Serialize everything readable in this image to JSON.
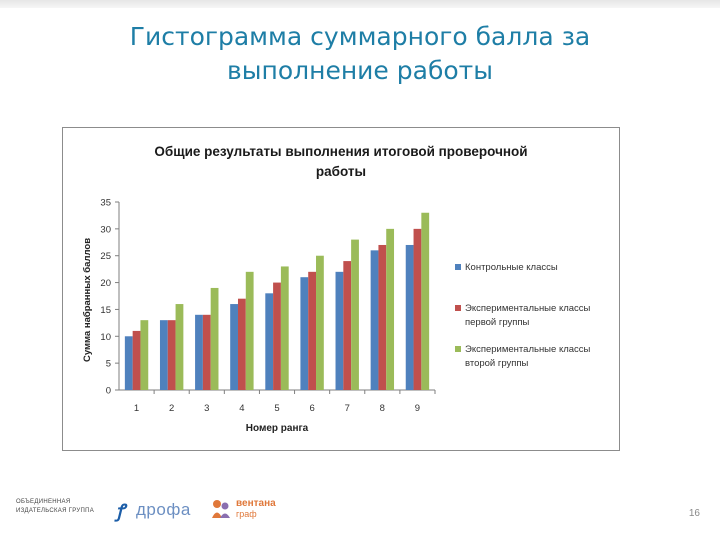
{
  "slide": {
    "title_line1": "Гистограмма суммарного балла за",
    "title_line2": "выполнение работы",
    "page_number": "16"
  },
  "footer": {
    "publisher_text": "ОБЪЕДИНЕННАЯ ИЗДАТЕЛЬСКАЯ ГРУППА",
    "drofa_logo": "дрофа",
    "ventana_logo_line1": "вентана",
    "ventana_logo_line2": "граф"
  },
  "colors": {
    "title": "#1e7ea6",
    "series1": "#4f81bd",
    "series2": "#c0504d",
    "series3": "#9bbb59"
  },
  "chart_data": {
    "type": "bar",
    "title": "Общие результаты выполнения итоговой проверочной работы",
    "title_lines": [
      "Общие результаты выполнения итоговой проверочной",
      "работы"
    ],
    "xlabel": "Номер ранга",
    "ylabel": "Сумма набранных баллов",
    "categories": [
      "1",
      "2",
      "3",
      "4",
      "5",
      "6",
      "7",
      "8",
      "9"
    ],
    "ylim": [
      0,
      35
    ],
    "yticks": [
      0,
      5,
      10,
      15,
      20,
      25,
      30,
      35
    ],
    "grid": false,
    "legend_position": "right",
    "series": [
      {
        "name": "Контрольные классы",
        "color": "#4f81bd",
        "values": [
          10,
          13,
          14,
          16,
          18,
          21,
          22,
          26,
          27
        ]
      },
      {
        "name": "Экспериментальные классы первой группы",
        "color": "#c0504d",
        "values": [
          11,
          13,
          14,
          17,
          20,
          22,
          24,
          27,
          30
        ]
      },
      {
        "name": "Экспериментальные классы второй группы",
        "color": "#9bbb59",
        "values": [
          13,
          16,
          19,
          22,
          23,
          25,
          28,
          30,
          33
        ]
      }
    ],
    "legend_lines": [
      [
        "Контрольные классы"
      ],
      [
        "Экспериментальные классы",
        "первой группы"
      ],
      [
        "Экспериментальные классы",
        "второй группы"
      ]
    ]
  }
}
